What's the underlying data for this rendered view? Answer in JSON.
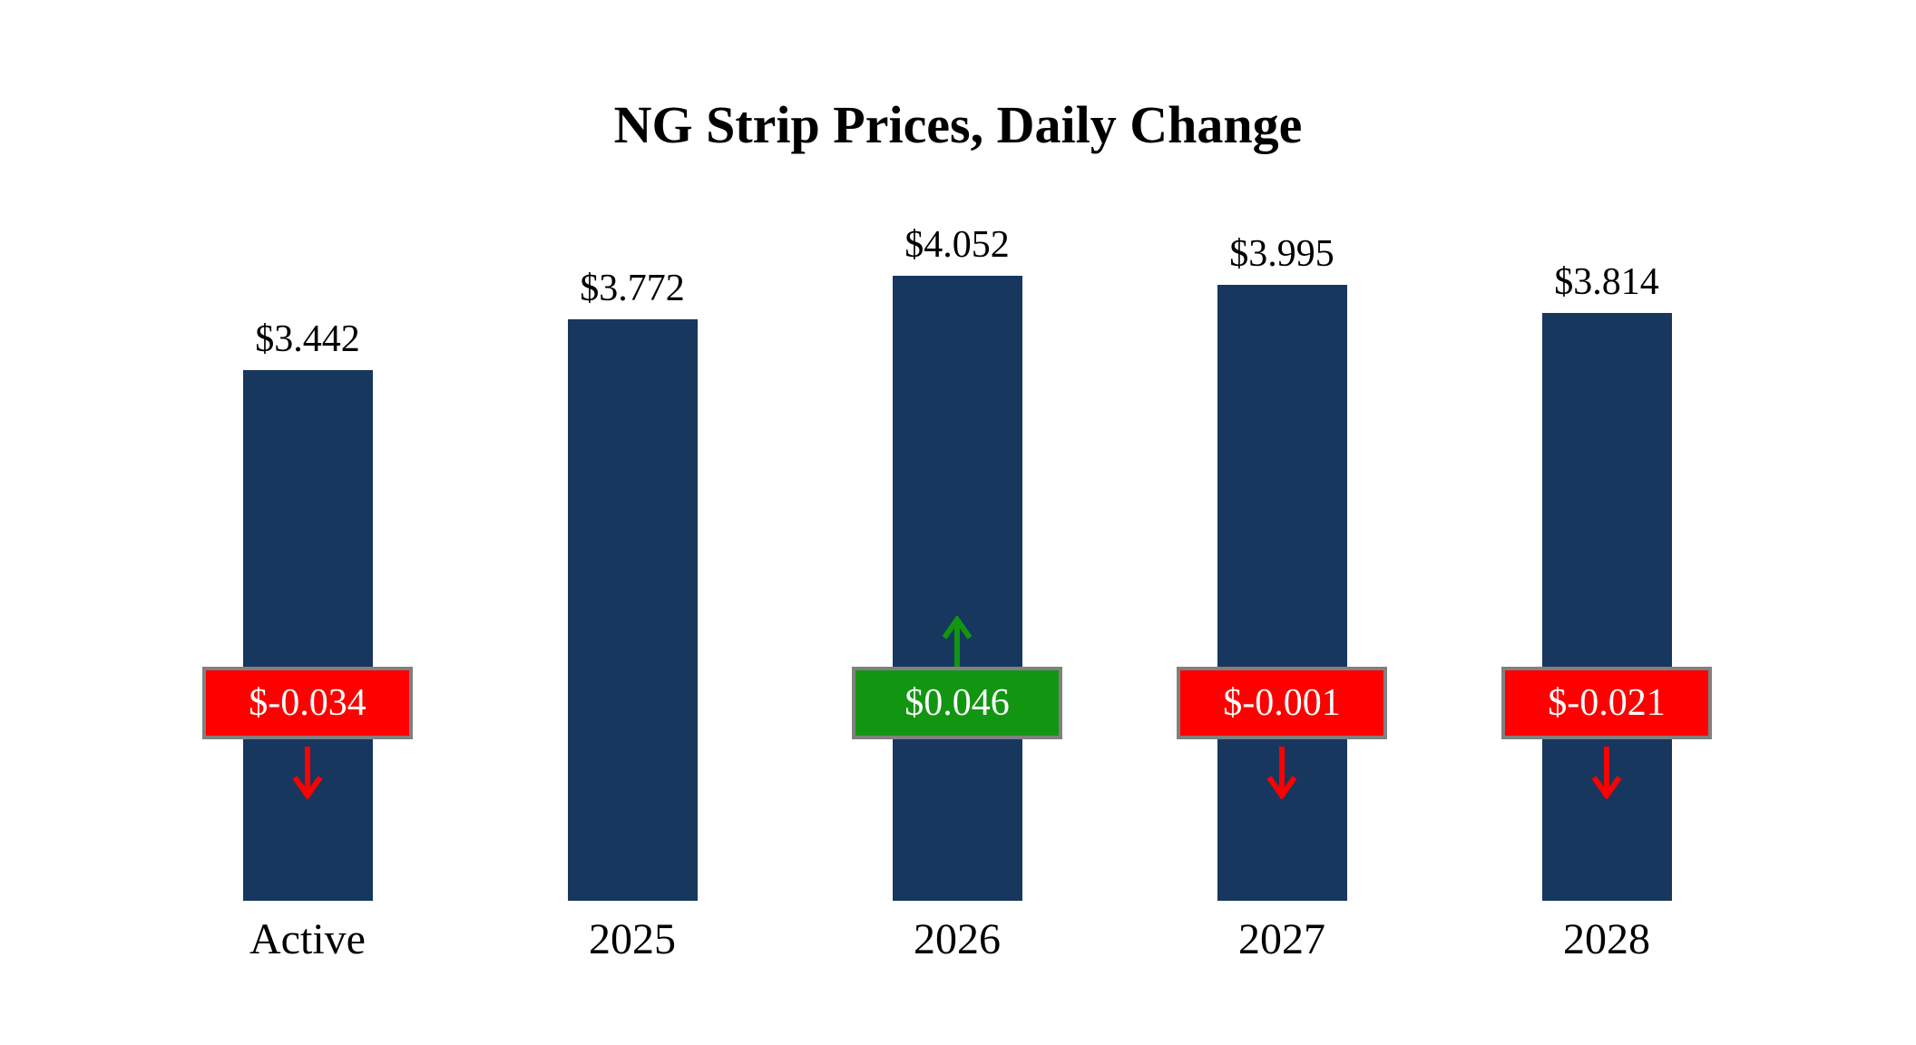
{
  "chart_data": {
    "type": "bar",
    "title": "NG Strip Prices, Daily Change",
    "categories": [
      "Active",
      "2025",
      "2026",
      "2027",
      "2028"
    ],
    "values": [
      3.442,
      3.772,
      4.052,
      3.995,
      3.814
    ],
    "value_labels": [
      "$3.442",
      "$3.772",
      "$4.052",
      "$3.995",
      "$3.814"
    ],
    "daily_changes": [
      {
        "value": -0.034,
        "label": "$-0.034",
        "direction": "down"
      },
      null,
      {
        "value": 0.046,
        "label": "$0.046",
        "direction": "up"
      },
      {
        "value": -0.001,
        "label": "$-0.001",
        "direction": "down"
      },
      {
        "value": -0.021,
        "label": "$-0.021",
        "direction": "down"
      }
    ],
    "colors": {
      "bar": "#17375E",
      "negative": "#FF0000",
      "positive": "#129612",
      "badge_border": "#808080",
      "text": "#000000",
      "badge_text": "#FFFFFF"
    },
    "xlabel": "",
    "ylabel": "",
    "ylim": [
      0,
      4.1
    ],
    "grid": false,
    "legend": false
  }
}
